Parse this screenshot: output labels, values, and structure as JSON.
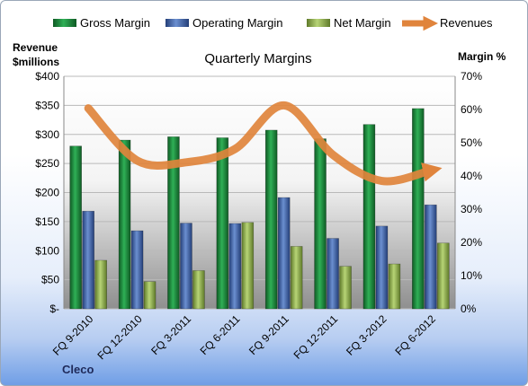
{
  "company": "Cleco",
  "chart_data": {
    "type": "bar",
    "title": "Quarterly Margins",
    "y_left_label_line1": "Revenue",
    "y_left_label_line2": "$millions",
    "y_right_label": "Margin %",
    "y_left_range": [
      0,
      400
    ],
    "y_right_range": [
      0,
      70
    ],
    "y_left_ticks": [
      "$-",
      "$50",
      "$100",
      "$150",
      "$200",
      "$250",
      "$300",
      "$350",
      "$400"
    ],
    "y_right_ticks": [
      "0%",
      "10%",
      "20%",
      "30%",
      "40%",
      "50%",
      "60%",
      "70%"
    ],
    "categories": [
      "FQ 9-2010",
      "FQ 12-2010",
      "FQ 3-2011",
      "FQ 6-2011",
      "FQ 9-2011",
      "FQ 12-2011",
      "FQ 3-2012",
      "FQ 6-2012"
    ],
    "grid": true,
    "legend_position": "top",
    "series": [
      {
        "name": "Gross Margin",
        "kind": "bar",
        "axis": "right",
        "color": "#1e8a3e",
        "values": [
          49,
          50.8,
          51.8,
          51.5,
          53.8,
          51.2,
          55.5,
          60.3
        ]
      },
      {
        "name": "Operating Margin",
        "kind": "bar",
        "axis": "right",
        "color": "#4a6fb5",
        "values": [
          29.4,
          23.5,
          25.8,
          25.7,
          33.5,
          21.2,
          24.9,
          31.3
        ]
      },
      {
        "name": "Net Margin",
        "kind": "bar",
        "axis": "right",
        "color": "#9bbb59",
        "values": [
          14.6,
          8.2,
          11.5,
          26,
          18.8,
          12.8,
          13.5,
          19.8
        ]
      },
      {
        "name": "Revenues",
        "kind": "line",
        "axis": "left",
        "color": "#e0843c",
        "values": [
          345,
          255,
          252,
          275,
          350,
          265,
          220,
          238
        ]
      }
    ]
  }
}
